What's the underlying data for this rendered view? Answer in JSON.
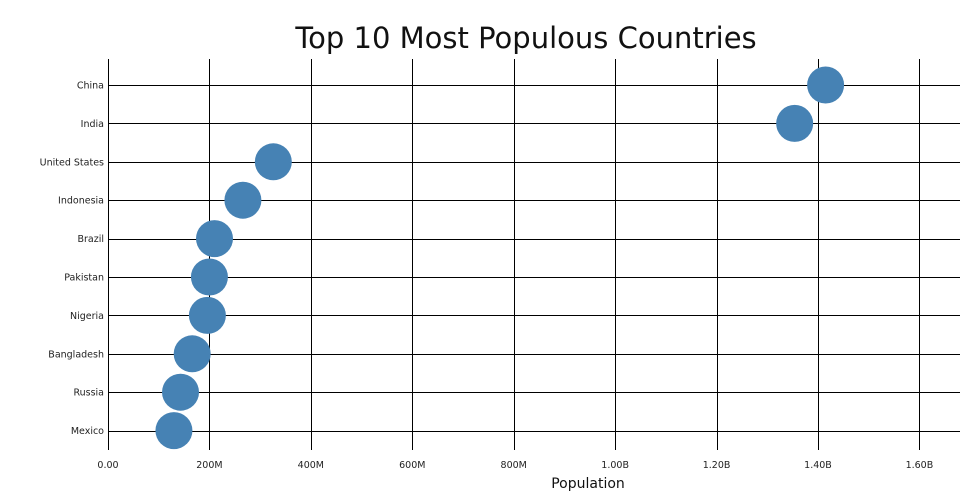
{
  "chart_data": {
    "type": "scatter",
    "title": "Top 10 Most Populous Countries",
    "xlabel": "Population",
    "ylabel": "",
    "xlim": [
      0,
      1680000000
    ],
    "x_ticks": [
      {
        "value": 0,
        "label": "0.00"
      },
      {
        "value": 200000000,
        "label": "200M"
      },
      {
        "value": 400000000,
        "label": "400M"
      },
      {
        "value": 600000000,
        "label": "600M"
      },
      {
        "value": 800000000,
        "label": "800M"
      },
      {
        "value": 1000000000,
        "label": "1.00B"
      },
      {
        "value": 1200000000,
        "label": "1.20B"
      },
      {
        "value": 1400000000,
        "label": "1.40B"
      },
      {
        "value": 1600000000,
        "label": "1.60B"
      }
    ],
    "grid": true,
    "marker_color": "#4682b4",
    "points": [
      {
        "category": "China",
        "value": 1415000000
      },
      {
        "category": "India",
        "value": 1354000000
      },
      {
        "category": "United States",
        "value": 326000000
      },
      {
        "category": "Indonesia",
        "value": 266000000
      },
      {
        "category": "Brazil",
        "value": 210000000
      },
      {
        "category": "Pakistan",
        "value": 200000000
      },
      {
        "category": "Nigeria",
        "value": 196000000
      },
      {
        "category": "Bangladesh",
        "value": 166000000
      },
      {
        "category": "Russia",
        "value": 143000000
      },
      {
        "category": "Mexico",
        "value": 130000000
      }
    ]
  }
}
